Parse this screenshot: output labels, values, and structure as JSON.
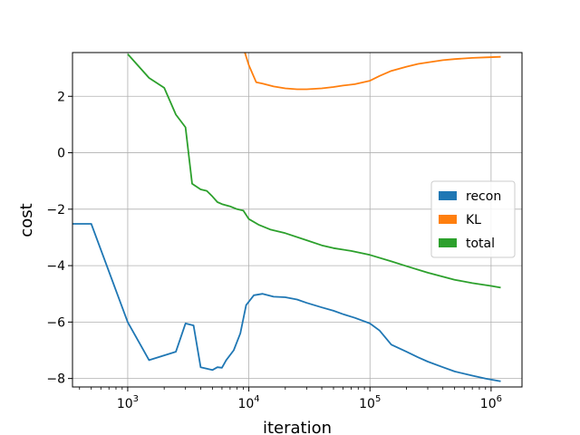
{
  "chart_data": {
    "type": "line",
    "xlabel": "iteration",
    "ylabel": "cost",
    "xscale": "log",
    "xlim": [
      350,
      1800000
    ],
    "ylim": [
      -8.3,
      3.55
    ],
    "grid": true,
    "legend_position": "right",
    "x_ticks": [
      {
        "value": 1000,
        "base": "10",
        "exp": "3"
      },
      {
        "value": 10000,
        "base": "10",
        "exp": "4"
      },
      {
        "value": 100000,
        "base": "10",
        "exp": "5"
      },
      {
        "value": 1000000,
        "base": "10",
        "exp": "6"
      }
    ],
    "y_ticks": [
      {
        "value": 2,
        "label": "2"
      },
      {
        "value": 0,
        "label": "0"
      },
      {
        "value": -2,
        "label": "−2"
      },
      {
        "value": -4,
        "label": "−4"
      },
      {
        "value": -6,
        "label": "−6"
      },
      {
        "value": -8,
        "label": "−8"
      }
    ],
    "series": [
      {
        "name": "recon",
        "color": "#1f77b4",
        "x": [
          300,
          500,
          1000,
          1500,
          2500,
          3000,
          3500,
          4000,
          5000,
          5500,
          6000,
          6500,
          7500,
          8500,
          9500,
          11000,
          13000,
          16000,
          20000,
          25000,
          30000,
          40000,
          50000,
          60000,
          75000,
          100000,
          120000,
          150000,
          200000,
          250000,
          300000,
          400000,
          500000,
          700000,
          900000,
          1200000
        ],
        "y": [
          -2.52,
          -2.52,
          -6.0,
          -7.35,
          -7.05,
          -6.05,
          -6.12,
          -7.6,
          -7.7,
          -7.6,
          -7.62,
          -7.35,
          -7.0,
          -6.4,
          -5.4,
          -5.05,
          -5.0,
          -5.1,
          -5.12,
          -5.2,
          -5.32,
          -5.48,
          -5.6,
          -5.72,
          -5.85,
          -6.05,
          -6.3,
          -6.8,
          -7.05,
          -7.25,
          -7.4,
          -7.6,
          -7.75,
          -7.9,
          -8.0,
          -8.1
        ]
      },
      {
        "name": "KL",
        "color": "#ff7f0e",
        "x": [
          9200,
          10000,
          11500,
          13000,
          16000,
          20000,
          25000,
          30000,
          40000,
          50000,
          60000,
          75000,
          100000,
          120000,
          150000,
          200000,
          250000,
          300000,
          400000,
          500000,
          700000,
          900000,
          1200000
        ],
        "y": [
          3.6,
          3.1,
          2.5,
          2.45,
          2.35,
          2.28,
          2.25,
          2.25,
          2.28,
          2.33,
          2.38,
          2.43,
          2.55,
          2.72,
          2.9,
          3.05,
          3.15,
          3.2,
          3.28,
          3.32,
          3.36,
          3.38,
          3.4
        ]
      },
      {
        "name": "total",
        "color": "#2ca02c",
        "x": [
          1000,
          1500,
          2000,
          2500,
          3000,
          3400,
          4000,
          4500,
          5000,
          5500,
          6000,
          7000,
          8000,
          9000,
          10000,
          12000,
          15000,
          20000,
          30000,
          40000,
          50000,
          70000,
          100000,
          150000,
          200000,
          300000,
          500000,
          700000,
          1000000,
          1200000
        ],
        "y": [
          3.5,
          2.65,
          2.3,
          1.35,
          0.9,
          -1.1,
          -1.3,
          -1.35,
          -1.55,
          -1.75,
          -1.82,
          -1.9,
          -2.0,
          -2.05,
          -2.35,
          -2.55,
          -2.72,
          -2.85,
          -3.1,
          -3.28,
          -3.38,
          -3.48,
          -3.62,
          -3.85,
          -4.02,
          -4.25,
          -4.5,
          -4.62,
          -4.72,
          -4.78
        ]
      }
    ]
  }
}
